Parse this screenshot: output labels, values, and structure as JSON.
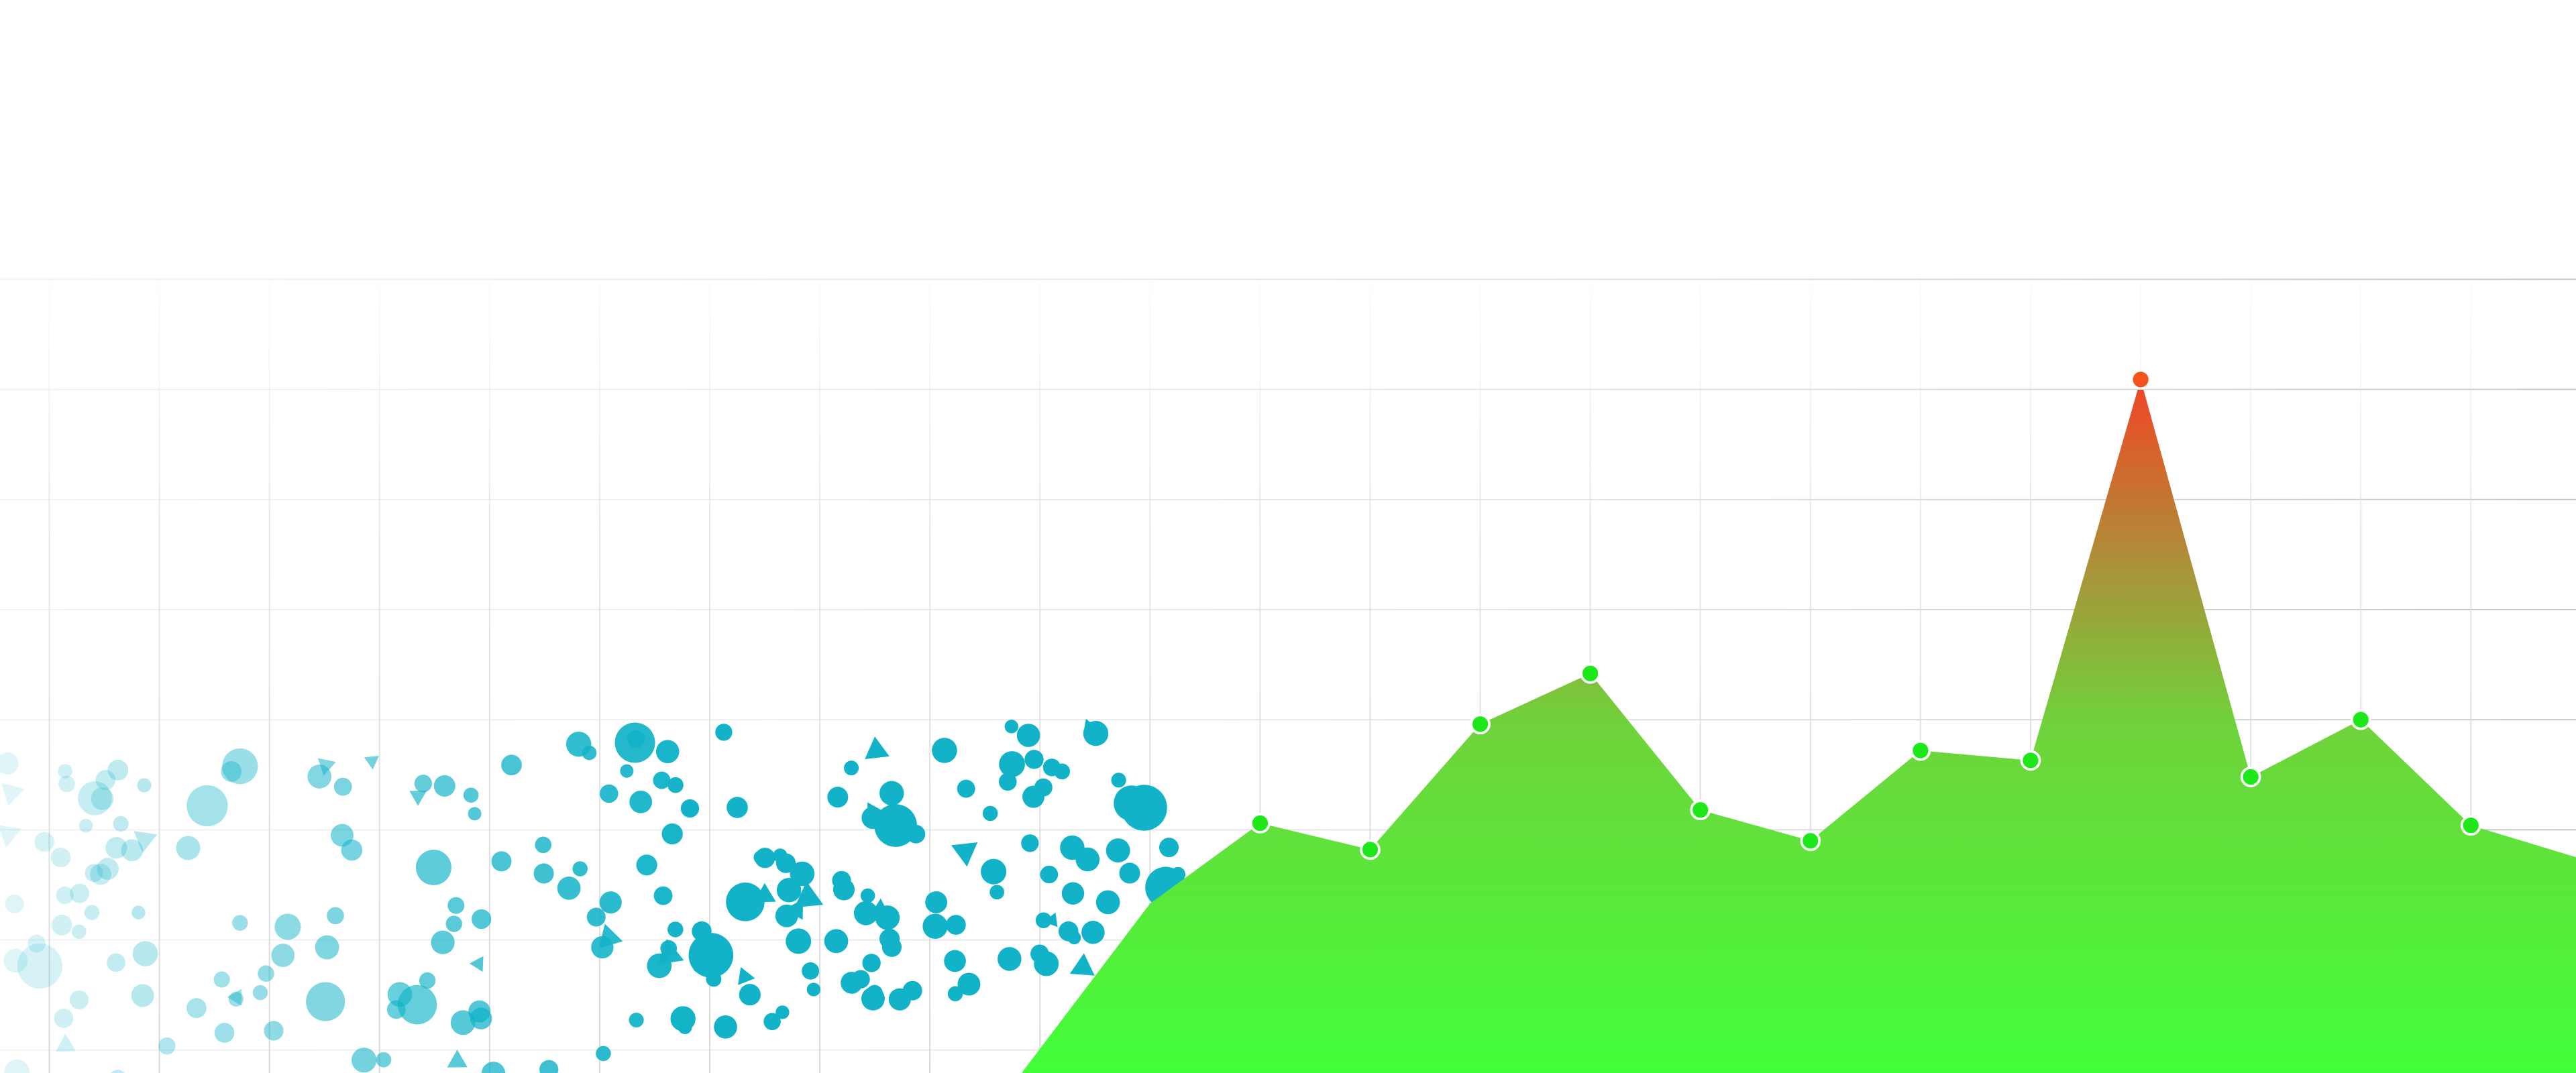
{
  "chart_data": {
    "type": "area",
    "x": [
      -2.16,
      -1,
      0,
      1,
      2,
      3,
      4,
      5,
      6,
      7,
      8,
      9,
      10,
      11,
      11.96
    ],
    "values": [
      -0.2,
      1.33,
      2.06,
      1.82,
      2.96,
      3.42,
      2.18,
      1.9,
      2.72,
      2.63,
      6.09,
      2.48,
      3.0,
      2.04,
      1.75
    ],
    "marker_colors": [
      null,
      null,
      "#1ee81a",
      "#1ee81a",
      "#1ee81a",
      "#1ee81a",
      "#1ee81a",
      "#1ee81a",
      "#1ee81a",
      "#1ee81a",
      "#f2541c",
      "#1ee81a",
      "#1ee81a",
      "#1ee81a",
      null
    ],
    "xlim": [
      -11.448,
      11.955
    ],
    "ylim": [
      -0.209,
      9.537
    ],
    "xticks": [
      -11,
      -10,
      -9,
      -8,
      -7,
      -6,
      -5,
      -4,
      -3,
      -2,
      -1,
      0,
      1,
      2,
      3,
      4,
      5,
      6,
      7,
      8,
      9,
      10,
      11
    ],
    "yticks": [
      0,
      1,
      2,
      3,
      4,
      5,
      6,
      7
    ],
    "grid": true
  }
}
